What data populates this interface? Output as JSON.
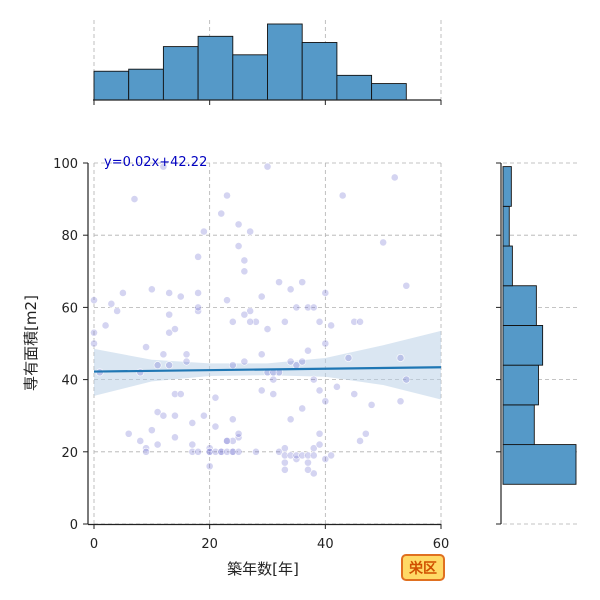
{
  "chart_data": {
    "type": "scatter",
    "xlabel": "築年数[年]",
    "ylabel": "専有面積[m2]",
    "xlim": [
      0,
      60
    ],
    "ylim": [
      0,
      100
    ],
    "x_ticks": [
      0,
      20,
      40,
      60
    ],
    "y_ticks": [
      0,
      20,
      40,
      60,
      80,
      100
    ],
    "grid": true,
    "equation_label": "y=0.02x+42.22",
    "regression": {
      "slope": 0.02,
      "intercept": 42.22,
      "x_range": [
        0,
        60
      ]
    },
    "confidence_band": {
      "x": [
        0,
        10,
        20,
        30,
        40,
        50,
        60
      ],
      "lower": [
        35.5,
        39.5,
        41.0,
        41.2,
        40.8,
        38.5,
        34.5
      ],
      "upper": [
        48.5,
        45.5,
        44.5,
        44.5,
        46.0,
        49.5,
        53.5
      ]
    },
    "points": [
      [
        0,
        62
      ],
      [
        0,
        50
      ],
      [
        0,
        53
      ],
      [
        1,
        42
      ],
      [
        3,
        61
      ],
      [
        4,
        59
      ],
      [
        5,
        64
      ],
      [
        2,
        55
      ],
      [
        6,
        25
      ],
      [
        7,
        90
      ],
      [
        8,
        23
      ],
      [
        8,
        42
      ],
      [
        9,
        49
      ],
      [
        9,
        21
      ],
      [
        9,
        20
      ],
      [
        10,
        26
      ],
      [
        10,
        65
      ],
      [
        11,
        31
      ],
      [
        11,
        22
      ],
      [
        12,
        99
      ],
      [
        12,
        47
      ],
      [
        13,
        58
      ],
      [
        13,
        64
      ],
      [
        13,
        53
      ],
      [
        14,
        54
      ],
      [
        14,
        36
      ],
      [
        14,
        30
      ],
      [
        14,
        24
      ],
      [
        15,
        63
      ],
      [
        16,
        47
      ],
      [
        16,
        45
      ],
      [
        17,
        28
      ],
      [
        17,
        20
      ],
      [
        18,
        64
      ],
      [
        18,
        59
      ],
      [
        18,
        74
      ],
      [
        18,
        60
      ],
      [
        19,
        81
      ],
      [
        19,
        30
      ],
      [
        20,
        20
      ],
      [
        20,
        16
      ],
      [
        20,
        21
      ],
      [
        21,
        35
      ],
      [
        21,
        27
      ],
      [
        22,
        86
      ],
      [
        22,
        20
      ],
      [
        23,
        91
      ],
      [
        23,
        23
      ],
      [
        23,
        62
      ],
      [
        24,
        29
      ],
      [
        24,
        20
      ],
      [
        24,
        56
      ],
      [
        24,
        44
      ],
      [
        25,
        77
      ],
      [
        25,
        83
      ],
      [
        25,
        24
      ],
      [
        26,
        70
      ],
      [
        26,
        73
      ],
      [
        26,
        45
      ],
      [
        27,
        81
      ],
      [
        27,
        59
      ],
      [
        28,
        56
      ],
      [
        28,
        20
      ],
      [
        29,
        47
      ],
      [
        29,
        37
      ],
      [
        30,
        99
      ],
      [
        30,
        54
      ],
      [
        30,
        42
      ],
      [
        31,
        36
      ],
      [
        31,
        40
      ],
      [
        32,
        67
      ],
      [
        32,
        20
      ],
      [
        32,
        42
      ],
      [
        33,
        56
      ],
      [
        33,
        21
      ],
      [
        33,
        17
      ],
      [
        34,
        65
      ],
      [
        34,
        45
      ],
      [
        34,
        29
      ],
      [
        35,
        60
      ],
      [
        35,
        18
      ],
      [
        35,
        44
      ],
      [
        36,
        45
      ],
      [
        36,
        32
      ],
      [
        36,
        67
      ],
      [
        37,
        60
      ],
      [
        37,
        48
      ],
      [
        37,
        17
      ],
      [
        38,
        60
      ],
      [
        38,
        40
      ],
      [
        38,
        14
      ],
      [
        39,
        56
      ],
      [
        39,
        37
      ],
      [
        39,
        25
      ],
      [
        40,
        64
      ],
      [
        40,
        50
      ],
      [
        40,
        34
      ],
      [
        40,
        18
      ],
      [
        41,
        55
      ],
      [
        41,
        19
      ],
      [
        42,
        38
      ],
      [
        43,
        91
      ],
      [
        44,
        46
      ],
      [
        45,
        56
      ],
      [
        45,
        36
      ],
      [
        46,
        56
      ],
      [
        46,
        23
      ],
      [
        47,
        25
      ],
      [
        48,
        33
      ],
      [
        50,
        78
      ],
      [
        52,
        96
      ],
      [
        53,
        46
      ],
      [
        53,
        34
      ],
      [
        54,
        66
      ],
      [
        54,
        40
      ],
      [
        20,
        20
      ],
      [
        21,
        20
      ],
      [
        22,
        20
      ],
      [
        23,
        20
      ],
      [
        24,
        20
      ],
      [
        25,
        20
      ],
      [
        33,
        19
      ],
      [
        34,
        19
      ],
      [
        35,
        19
      ],
      [
        36,
        19
      ],
      [
        37,
        19
      ],
      [
        38,
        19
      ],
      [
        37,
        15
      ],
      [
        33,
        15
      ],
      [
        38,
        21
      ],
      [
        39,
        22
      ],
      [
        24,
        23
      ],
      [
        23,
        23
      ],
      [
        25,
        25
      ],
      [
        17,
        22
      ],
      [
        18,
        20
      ],
      [
        15,
        36
      ],
      [
        12,
        30
      ],
      [
        11,
        44
      ],
      [
        13,
        44
      ],
      [
        26,
        58
      ],
      [
        27,
        56
      ],
      [
        29,
        63
      ],
      [
        31,
        42
      ]
    ],
    "top_histogram": {
      "bin_edges": [
        0,
        6,
        12,
        18,
        24,
        30,
        36,
        42,
        48,
        54
      ],
      "counts": [
        14,
        15,
        26,
        31,
        22,
        37,
        28,
        12,
        8
      ]
    },
    "right_histogram": {
      "bin_edges": [
        11,
        22,
        33,
        44,
        55,
        66,
        77,
        88,
        99
      ],
      "counts": [
        70,
        30,
        34,
        38,
        32,
        9,
        6,
        8
      ]
    }
  },
  "badge": {
    "label": "栄区",
    "text_color": "#d05000",
    "fill_color": "#ffd966",
    "border_color": "#e07020"
  },
  "colors": {
    "points": "#7070d0",
    "line": "#1f77b4",
    "band": "#b5cde6",
    "hist": "#5599c8",
    "equation": "#0000c0"
  }
}
